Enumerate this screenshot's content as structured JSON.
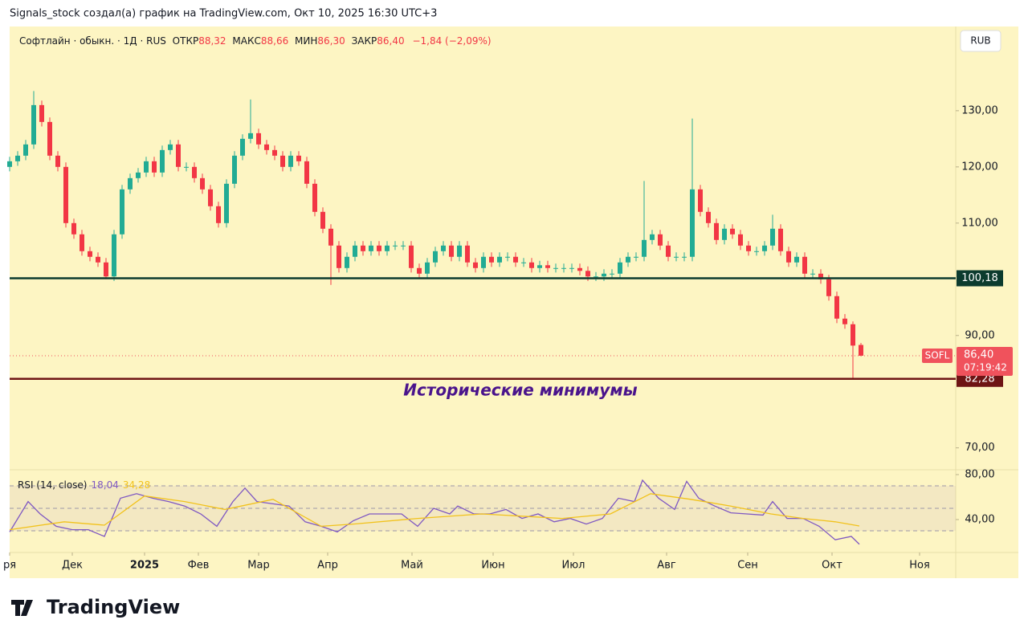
{
  "attribution": "Signals_stock создал(а) график на TradingView.com, Окт 10, 2025 16:30 UTC+3",
  "header": {
    "symbol": "Софтлайн · обыкн. · 1Д · RUS",
    "open_label": "ОТКР",
    "open": "88,32",
    "high_label": "МАКС",
    "high": "88,66",
    "low_label": "МИН",
    "low": "86,30",
    "close_label": "ЗАКР",
    "close": "86,40",
    "change": "−1,84 (−2,09%)"
  },
  "currency": "RUB",
  "footer_logo": "TradingView",
  "chart_data": [
    {
      "type": "candlestick",
      "x": [
        0,
        1,
        2,
        3,
        4,
        5,
        6,
        7,
        8,
        9,
        10,
        11,
        12,
        13,
        14,
        15,
        16,
        17,
        18,
        19,
        20,
        21,
        22,
        23,
        24,
        25,
        26,
        27,
        28,
        29,
        30,
        31,
        32,
        33,
        34,
        35,
        36,
        37,
        38,
        39,
        40,
        41,
        42,
        43,
        44,
        45,
        46,
        47,
        48,
        49,
        50,
        51,
        52,
        53,
        54,
        55,
        56,
        57,
        58,
        59,
        60,
        61,
        62,
        63,
        64,
        65,
        66,
        67,
        68,
        69,
        70,
        71,
        72,
        73,
        74,
        75,
        76,
        77,
        78,
        79,
        80,
        81,
        82,
        83,
        84,
        85,
        86,
        87,
        88,
        89,
        90,
        91,
        92,
        93,
        94,
        95,
        96,
        97,
        98,
        99,
        100,
        101,
        102,
        103,
        104,
        105,
        106
      ],
      "open": [
        120,
        121,
        122,
        124,
        131,
        128,
        122,
        120,
        110,
        108,
        105,
        104,
        103,
        100.5,
        108,
        116,
        118,
        119,
        121,
        119,
        123,
        124,
        120,
        120,
        118,
        116,
        113,
        110,
        117,
        122,
        125,
        126,
        124,
        123,
        122,
        120,
        122,
        121,
        117,
        112,
        109,
        106,
        102,
        104,
        106,
        105,
        106,
        105,
        106,
        106,
        106,
        102,
        101,
        103,
        105,
        106,
        104,
        106,
        103,
        102,
        104,
        103,
        104,
        104,
        103,
        103,
        102,
        102.5,
        102,
        102,
        102,
        102,
        101.5,
        100.5,
        100.5,
        101,
        101,
        103,
        104,
        104,
        107,
        108,
        106,
        104,
        104,
        104,
        116,
        112,
        110,
        107,
        109,
        108,
        106,
        105,
        105,
        106,
        109,
        105,
        103,
        104,
        101,
        101,
        100,
        97,
        93,
        92,
        88.32
      ],
      "high": [
        121.8,
        122.8,
        124.8,
        133.5,
        131.8,
        128.8,
        122.8,
        120.8,
        110.8,
        108.8,
        105.8,
        104.8,
        103.8,
        108.8,
        116.8,
        118.8,
        119.8,
        121.8,
        121.8,
        123.8,
        124.8,
        124.8,
        120.8,
        120.8,
        118.8,
        116.8,
        113.8,
        117.8,
        122.8,
        125.8,
        132,
        126.8,
        124.8,
        123.8,
        122.8,
        122.8,
        122.8,
        121.8,
        117.8,
        112.8,
        109.8,
        106.8,
        104.8,
        106.8,
        106.8,
        106.8,
        106.8,
        106.8,
        106.8,
        106.8,
        106.8,
        102.8,
        103.8,
        105.8,
        106.8,
        106.8,
        106.8,
        106.8,
        103.8,
        104.8,
        104.8,
        104.8,
        104.8,
        104.8,
        103.8,
        103.8,
        103.3,
        103.3,
        102.8,
        102.8,
        102.8,
        102.8,
        102.3,
        101.3,
        101.8,
        101.8,
        103.8,
        104.8,
        104.8,
        117.5,
        108.8,
        108.8,
        106.8,
        104.8,
        104.8,
        128.6,
        116.8,
        112.8,
        110.8,
        109.8,
        109.8,
        108.8,
        106.8,
        105.8,
        106.8,
        111.5,
        109.8,
        105.8,
        104.8,
        104.8,
        101.8,
        101.8,
        100.8,
        97.8,
        93.8,
        92.5,
        88.66
      ],
      "low": [
        119.2,
        120.2,
        121.2,
        123.2,
        127.2,
        121.2,
        119.2,
        109.2,
        107.2,
        104.2,
        103.2,
        102.2,
        100,
        99.7,
        107.2,
        115.2,
        117.2,
        118.2,
        118.2,
        118.2,
        122.2,
        119.2,
        119.2,
        117.2,
        115.2,
        112.2,
        109.2,
        109.2,
        116.2,
        121.2,
        124.2,
        123.2,
        122.2,
        121.2,
        119.2,
        119.2,
        120.2,
        116.2,
        111.2,
        108.2,
        99,
        101.2,
        101.2,
        103.2,
        104.2,
        104.2,
        104.2,
        104.2,
        105.2,
        105.2,
        101.2,
        100.2,
        100.2,
        102.2,
        104.2,
        103.2,
        103.2,
        102.2,
        101.2,
        101.2,
        102.2,
        102.2,
        103.2,
        102.2,
        102.2,
        101.2,
        101.2,
        101.2,
        101.2,
        101.2,
        101.2,
        100.7,
        99.7,
        99.7,
        99.7,
        100.2,
        100.2,
        102.2,
        103.2,
        103.2,
        106.2,
        105.2,
        103.2,
        103.2,
        103.2,
        103.2,
        111.2,
        109.2,
        106.2,
        106.2,
        107.2,
        105.2,
        104.2,
        104.2,
        104.2,
        105.2,
        104.2,
        102.2,
        102.2,
        100.2,
        100.2,
        99.2,
        96.2,
        92.2,
        91.2,
        82.3,
        86.3
      ],
      "close": [
        121,
        122,
        124,
        131,
        128,
        122,
        120,
        110,
        108,
        105,
        104,
        103,
        100.5,
        108,
        116,
        118,
        119,
        121,
        119,
        123,
        124,
        120,
        120,
        118,
        116,
        113,
        110,
        117,
        122,
        125,
        126,
        124,
        123,
        122,
        120,
        122,
        121,
        117,
        112,
        109,
        106,
        102,
        104,
        106,
        105,
        106,
        105,
        106,
        106,
        106,
        102,
        101,
        103,
        105,
        106,
        104,
        106,
        103,
        102,
        104,
        103,
        104,
        104,
        103,
        103,
        102,
        102.5,
        102,
        102,
        102,
        102,
        101.5,
        100.5,
        100.5,
        101,
        101,
        103,
        104,
        104,
        107,
        108,
        106,
        104,
        104,
        104,
        116,
        112,
        110,
        107,
        109,
        108,
        106,
        105,
        105,
        106,
        109,
        105,
        103,
        104,
        101,
        101,
        100,
        97,
        93,
        92,
        88.2,
        86.4
      ],
      "up_color": "#22ab94",
      "down_color": "#f23645",
      "xlim": [
        0,
        117.8
      ],
      "xticks": [
        {
          "value": 0,
          "label": "ря"
        },
        {
          "value": 7.8,
          "label": "Дек"
        },
        {
          "value": 16.8,
          "label": "2025"
        },
        {
          "value": 23.5,
          "label": "Фев"
        },
        {
          "value": 31,
          "label": "Мар"
        },
        {
          "value": 39.6,
          "label": "Апр"
        },
        {
          "value": 50.1,
          "label": "Май"
        },
        {
          "value": 60.2,
          "label": "Июн"
        },
        {
          "value": 70.2,
          "label": "Июл"
        },
        {
          "value": 81.8,
          "label": "Авг"
        },
        {
          "value": 91.9,
          "label": "Сен"
        },
        {
          "value": 102.4,
          "label": "Окт"
        },
        {
          "value": 113.3,
          "label": "Ноя"
        }
      ],
      "ylim": [
        66.1,
        144.7
      ],
      "yticks": [
        {
          "value": 70,
          "label": "70,00"
        },
        {
          "value": 90,
          "label": "90,00"
        },
        {
          "value": 110,
          "label": "110,00"
        },
        {
          "value": 120,
          "label": "120,00"
        },
        {
          "value": 130,
          "label": "130,00"
        }
      ],
      "levels": [
        {
          "value": 100.18,
          "label": "100,18",
          "color": "#0c3b2e"
        },
        {
          "value": 82.28,
          "label": "82,28",
          "color": "#6e1414"
        }
      ],
      "last_price": {
        "value": 86.4,
        "label": "86,40",
        "symbol": "SOFL",
        "countdown": "07:19:42",
        "color": "#f0525c"
      },
      "annotation": "Исторические минимумы"
    },
    {
      "type": "line",
      "title": "RSI (14, close)",
      "ylim": [
        10.7,
        84.3
      ],
      "yticks": [
        {
          "value": 80,
          "label": "80,00"
        },
        {
          "value": 40,
          "label": "40,00"
        }
      ],
      "levels": [
        70,
        50,
        30
      ],
      "series": [
        {
          "color": "#7e57c2",
          "last_label": "18,04",
          "x": [
            0,
            2.3,
            3.8,
            5.8,
            7.8,
            9.8,
            11.8,
            13.8,
            15.8,
            17.8,
            19.8,
            21.8,
            23.8,
            25.8,
            27.8,
            29.3,
            30.8,
            32.8,
            34.8,
            36.8,
            38.8,
            40.8,
            42.8,
            44.8,
            46.8,
            48.8,
            50.8,
            52.8,
            54.8,
            55.8,
            57.8,
            59.8,
            61.8,
            63.8,
            65.8,
            67.8,
            69.8,
            71.8,
            73.8,
            75.8,
            77.8,
            78.8,
            80.8,
            82.8,
            84.3,
            85.8,
            87.8,
            89.8,
            91.8,
            93.8,
            95,
            96.8,
            98.8,
            100.8,
            102.8,
            104.8,
            105.8
          ],
          "values": [
            29,
            56,
            45,
            34,
            31,
            31,
            25,
            59,
            63,
            59,
            56,
            52,
            45,
            34,
            56,
            68,
            56,
            54,
            52,
            38,
            34,
            29,
            39,
            45,
            45,
            45,
            34,
            50,
            45,
            52,
            45,
            45,
            49,
            41,
            45,
            38,
            41,
            36,
            41,
            59,
            56,
            75,
            59,
            49,
            74,
            59,
            52,
            46,
            45,
            44,
            56,
            41,
            41,
            34,
            22,
            25,
            18.04
          ]
        },
        {
          "color": "#f2c21b",
          "last_label": "34,28",
          "x": [
            0,
            6.8,
            11.8,
            16.8,
            21.8,
            26.8,
            32.8,
            38.8,
            42.8,
            50.8,
            58.8,
            68.8,
            74.8,
            79.8,
            84.8,
            89.8,
            94.8,
            98.8,
            102.8,
            105.8
          ],
          "values": [
            31,
            38,
            35,
            61,
            56,
            49,
            58,
            34,
            36,
            41,
            45,
            41,
            45,
            63,
            58,
            52,
            45,
            41,
            38,
            34.28
          ]
        }
      ]
    }
  ]
}
